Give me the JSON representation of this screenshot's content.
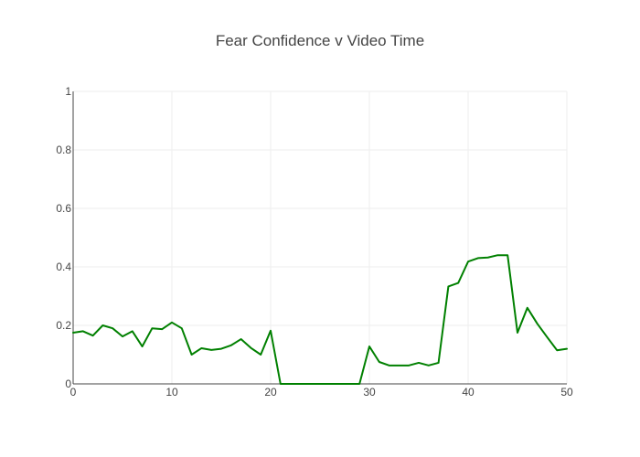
{
  "chart_data": {
    "type": "line",
    "title": "Fear Confidence v Video Time",
    "xlabel": "",
    "ylabel": "",
    "xlim": [
      0,
      50
    ],
    "ylim": [
      0,
      1
    ],
    "grid": true,
    "x_ticks": [
      0,
      10,
      20,
      30,
      40,
      50
    ],
    "y_ticks": [
      0,
      0.2,
      0.4,
      0.6,
      0.8,
      1
    ],
    "x_tick_labels": [
      "0",
      "10",
      "20",
      "30",
      "40",
      "50"
    ],
    "y_tick_labels": [
      "0",
      "0.2",
      "0.4",
      "0.6",
      "0.8",
      "1"
    ],
    "series": [
      {
        "color": "#008000",
        "x": [
          0,
          1,
          2,
          3,
          4,
          5,
          6,
          7,
          8,
          9,
          10,
          11,
          12,
          13,
          14,
          15,
          16,
          17,
          18,
          19,
          20,
          21,
          22,
          23,
          24,
          25,
          26,
          27,
          28,
          29,
          30,
          31,
          32,
          33,
          34,
          35,
          36,
          37,
          38,
          39,
          40,
          41,
          42,
          43,
          44,
          45,
          46,
          47,
          48,
          49,
          50
        ],
        "y": [
          0.175,
          0.18,
          0.165,
          0.2,
          0.19,
          0.162,
          0.18,
          0.128,
          0.19,
          0.187,
          0.21,
          0.19,
          0.1,
          0.122,
          0.116,
          0.12,
          0.132,
          0.153,
          0.123,
          0.1,
          0.182,
          0.0,
          0.0,
          0.0,
          0.0,
          0.0,
          0.0,
          0.0,
          0.0,
          0.0,
          0.128,
          0.075,
          0.063,
          0.063,
          0.063,
          0.072,
          0.063,
          0.072,
          0.333,
          0.345,
          0.418,
          0.43,
          0.432,
          0.44,
          0.44,
          0.175,
          0.26,
          0.206,
          0.16,
          0.115,
          0.12
        ]
      }
    ]
  }
}
